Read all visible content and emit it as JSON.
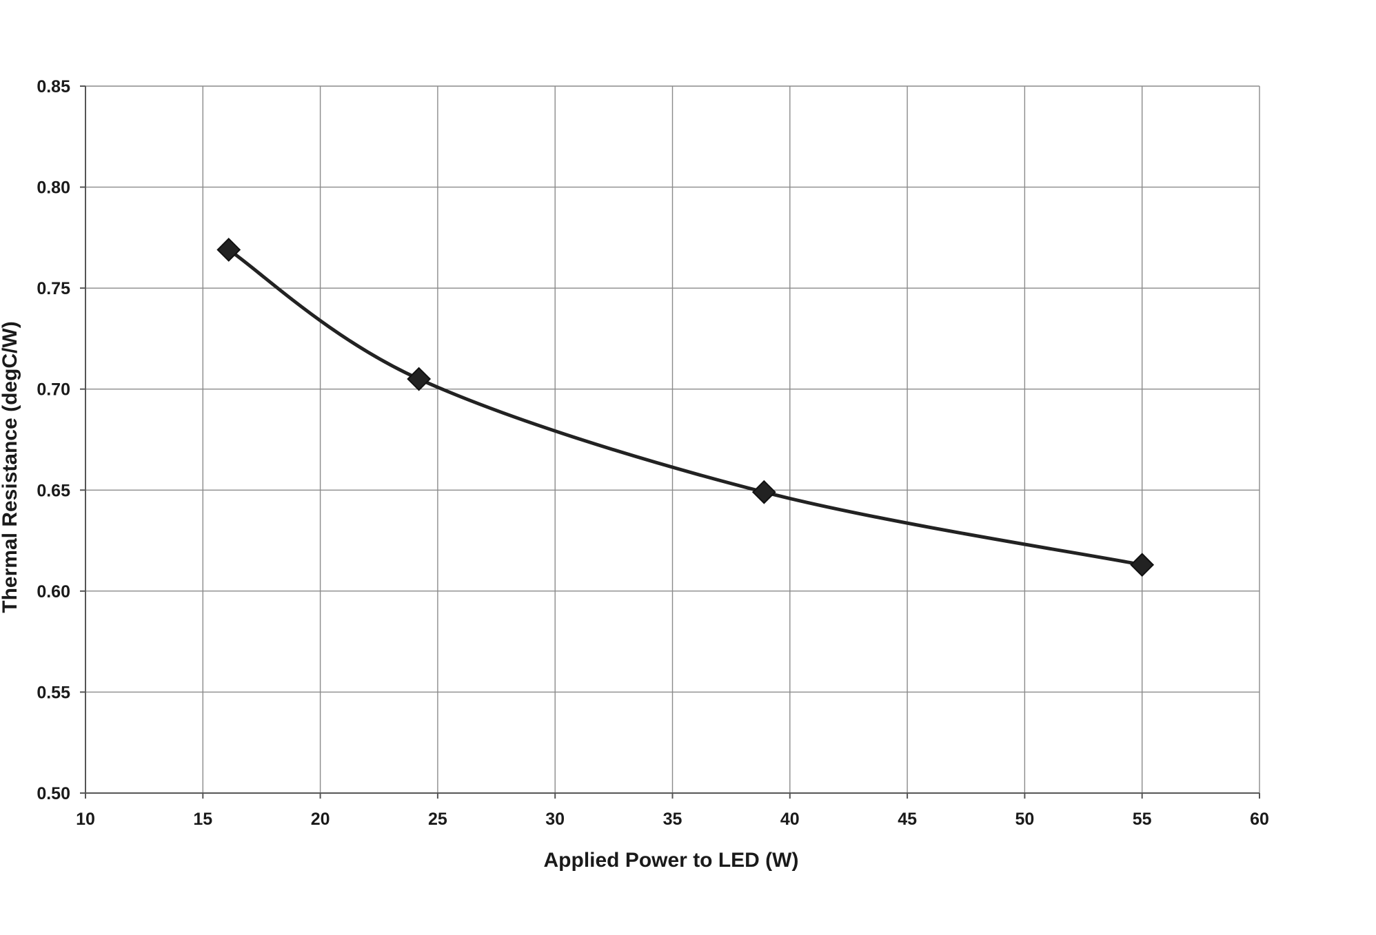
{
  "colors": {
    "background": "#ffffff",
    "grid": "#8a8a8a",
    "axis": "#555555",
    "series": "#222222",
    "text": "#1a1a1a"
  },
  "chart_data": {
    "type": "line",
    "title": "",
    "xlabel": "Applied Power to LED (W)",
    "ylabel": "Thermal Resistance (degC/W)",
    "xlim": [
      10,
      60
    ],
    "ylim": [
      0.5,
      0.85
    ],
    "x_ticks": [
      10,
      15,
      20,
      25,
      30,
      35,
      40,
      45,
      50,
      55,
      60
    ],
    "x_tick_labels": [
      "10",
      "15",
      "20",
      "25",
      "30",
      "35",
      "40",
      "45",
      "50",
      "55",
      "60"
    ],
    "y_ticks": [
      0.5,
      0.55,
      0.6,
      0.65,
      0.7,
      0.75,
      0.8,
      0.85
    ],
    "y_tick_labels": [
      "0.50",
      "0.55",
      "0.60",
      "0.65",
      "0.70",
      "0.75",
      "0.80",
      "0.85"
    ],
    "grid": true,
    "legend": "none",
    "smooth": true,
    "marker": "diamond",
    "series": [
      {
        "x": [
          16.1,
          24.2,
          38.9,
          55.0
        ],
        "y": [
          0.769,
          0.705,
          0.649,
          0.613
        ]
      }
    ]
  }
}
